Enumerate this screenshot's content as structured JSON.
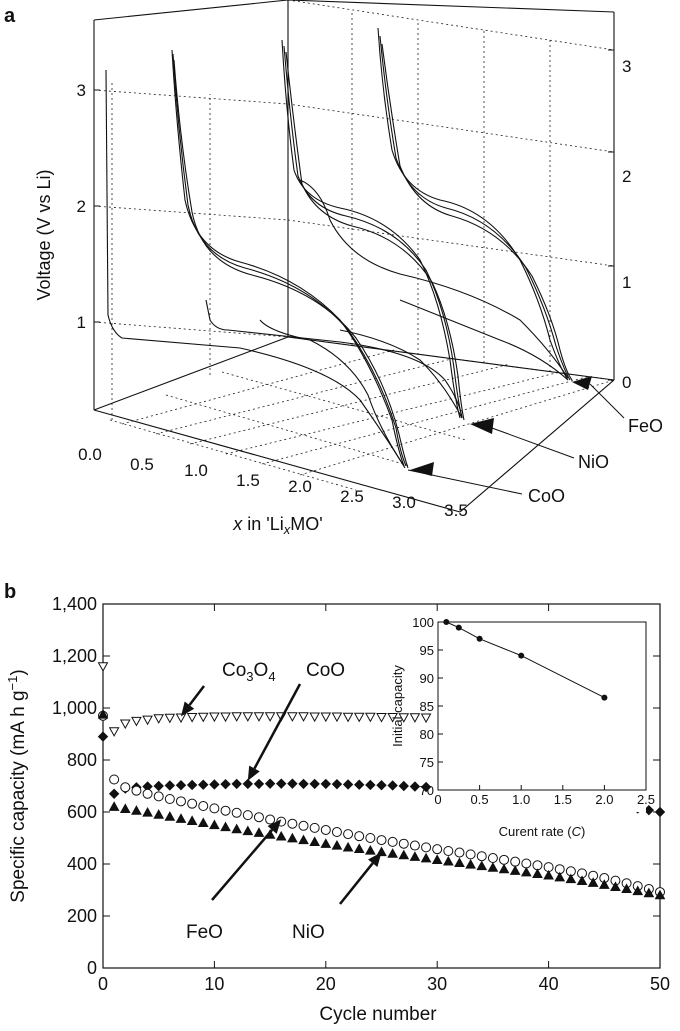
{
  "chart_data": [
    {
      "panel_label": "a",
      "type": "line",
      "projection": "3d",
      "ylabel": "Voltage (V vs Li)",
      "xlabel_prefix": "x",
      "xlabel_mid": " in 'Li",
      "xlabel_sub": "x",
      "xlabel_suffix": "MO'",
      "x_ticks": [
        "0.0",
        "0.5",
        "1.0",
        "1.5",
        "2.0",
        "2.5",
        "3.0",
        "3.5"
      ],
      "y_ticks_left": [
        "1",
        "2",
        "3"
      ],
      "y_ticks_right": [
        "0",
        "1",
        "2",
        "3"
      ],
      "xlim": [
        0,
        3.5
      ],
      "ylim": [
        0,
        3.3
      ],
      "series": [
        {
          "name": "CoO"
        },
        {
          "name": "NiO"
        },
        {
          "name": "FeO"
        }
      ]
    },
    {
      "panel_label": "b",
      "type": "scatter",
      "xlabel": "Cycle number",
      "ylabel_main": "Specific capacity (mA h g",
      "ylabel_sup": "−1",
      "ylabel_end": ")",
      "xlim": [
        0,
        50
      ],
      "ylim": [
        0,
        1400
      ],
      "x_ticks": [
        "0",
        "10",
        "20",
        "30",
        "40",
        "50"
      ],
      "y_ticks": [
        "0",
        "200",
        "400",
        "600",
        "800",
        "1,000",
        "1,200",
        "1,400"
      ],
      "series": [
        {
          "name": "Co3O4",
          "name_main": "Co",
          "name_sub1": "3",
          "name_mid": "O",
          "name_sub2": "4",
          "marker": "triangle-down-open",
          "x": [
            0,
            1,
            2,
            3,
            4,
            5,
            6,
            7,
            8,
            9,
            10,
            11,
            12,
            13,
            14,
            15,
            16,
            17,
            18,
            19,
            20,
            21,
            22,
            23,
            24,
            25,
            26,
            27,
            28,
            29,
            30,
            31,
            32,
            33,
            34,
            35
          ],
          "y": [
            1160,
            910,
            940,
            950,
            955,
            960,
            962,
            963,
            965,
            966,
            967,
            967,
            968,
            968,
            968,
            968,
            968,
            968,
            968,
            967,
            967,
            967,
            966,
            966,
            966,
            965,
            965,
            964,
            964,
            963,
            962,
            962,
            961,
            960,
            958,
            955
          ]
        },
        {
          "name": "CoO",
          "marker": "diamond-filled",
          "x": [
            0,
            1,
            2,
            3,
            4,
            5,
            6,
            7,
            8,
            9,
            10,
            11,
            12,
            13,
            14,
            15,
            16,
            17,
            18,
            19,
            20,
            21,
            22,
            23,
            24,
            25,
            26,
            27,
            28,
            29,
            30,
            31,
            32,
            33,
            34,
            35,
            36,
            37,
            38,
            39,
            40,
            41,
            42,
            43,
            44,
            45,
            46,
            47,
            48,
            49,
            50
          ],
          "y": [
            890,
            670,
            690,
            695,
            698,
            700,
            702,
            703,
            704,
            705,
            706,
            707,
            708,
            708,
            708,
            709,
            709,
            709,
            708,
            708,
            708,
            707,
            706,
            705,
            704,
            703,
            702,
            700,
            698,
            696,
            694,
            691,
            688,
            685,
            682,
            678,
            674,
            670,
            666,
            662,
            657,
            652,
            647,
            642,
            637,
            632,
            626,
            620,
            614,
            607,
            600
          ]
        },
        {
          "name": "FeO",
          "marker": "circle-open",
          "x": [
            0,
            1,
            2,
            3,
            4,
            5,
            6,
            7,
            8,
            9,
            10,
            11,
            12,
            13,
            14,
            15,
            16,
            17,
            18,
            19,
            20,
            21,
            22,
            23,
            24,
            25,
            26,
            27,
            28,
            29,
            30,
            31,
            32,
            33,
            34,
            35,
            36,
            37,
            38,
            39,
            40,
            41,
            42,
            43,
            44,
            45,
            46,
            47,
            48,
            49,
            50
          ],
          "y": [
            970,
            725,
            695,
            682,
            670,
            660,
            650,
            641,
            632,
            623,
            614,
            605,
            597,
            588,
            580,
            571,
            563,
            555,
            547,
            539,
            531,
            523,
            515,
            507,
            500,
            492,
            485,
            478,
            471,
            464,
            457,
            450,
            444,
            437,
            430,
            423,
            416,
            409,
            402,
            395,
            388,
            380,
            372,
            364,
            355,
            346,
            336,
            326,
            315,
            304,
            292
          ]
        },
        {
          "name": "NiO",
          "marker": "triangle-up-filled",
          "x": [
            0,
            1,
            2,
            3,
            4,
            5,
            6,
            7,
            8,
            9,
            10,
            11,
            12,
            13,
            14,
            15,
            16,
            17,
            18,
            19,
            20,
            21,
            22,
            23,
            24,
            25,
            26,
            27,
            28,
            29,
            30,
            31,
            32,
            33,
            34,
            35,
            36,
            37,
            38,
            39,
            40,
            41,
            42,
            43,
            44,
            45,
            46,
            47,
            48,
            49,
            50
          ],
          "y": [
            975,
            620,
            612,
            605,
            598,
            590,
            582,
            574,
            566,
            558,
            550,
            542,
            534,
            527,
            520,
            513,
            506,
            499,
            492,
            485,
            478,
            471,
            464,
            458,
            452,
            446,
            440,
            434,
            428,
            422,
            416,
            410,
            404,
            398,
            392,
            386,
            380,
            374,
            368,
            362,
            356,
            349,
            342,
            335,
            328,
            320,
            312,
            304,
            296,
            288,
            280
          ]
        }
      ],
      "annotations": [
        {
          "label": "Co3O4",
          "arrow_to_x": 7,
          "arrow_to_y": 968
        },
        {
          "label": "CoO",
          "arrow_to_x": 13,
          "arrow_to_y": 720
        },
        {
          "label": "FeO",
          "arrow_to_x": 16,
          "arrow_to_y": 572
        },
        {
          "label": "NiO",
          "arrow_to_x": 25,
          "arrow_to_y": 445
        }
      ],
      "inset": {
        "type": "line",
        "xlabel_main": "Curent rate (",
        "xlabel_italic": "C",
        "xlabel_end": ")",
        "ylabel": "Initial capacity",
        "xlim": [
          0,
          2.5
        ],
        "ylim": [
          70,
          100
        ],
        "x_ticks": [
          "0",
          "0.5",
          "1.0",
          "1.5",
          "2.0",
          "2.5"
        ],
        "y_ticks": [
          "70",
          "75",
          "80",
          "85",
          "90",
          "95",
          "100"
        ],
        "x": [
          0.1,
          0.25,
          0.5,
          1.0,
          2.0
        ],
        "y": [
          100,
          99,
          97,
          94,
          86.5
        ]
      }
    }
  ]
}
